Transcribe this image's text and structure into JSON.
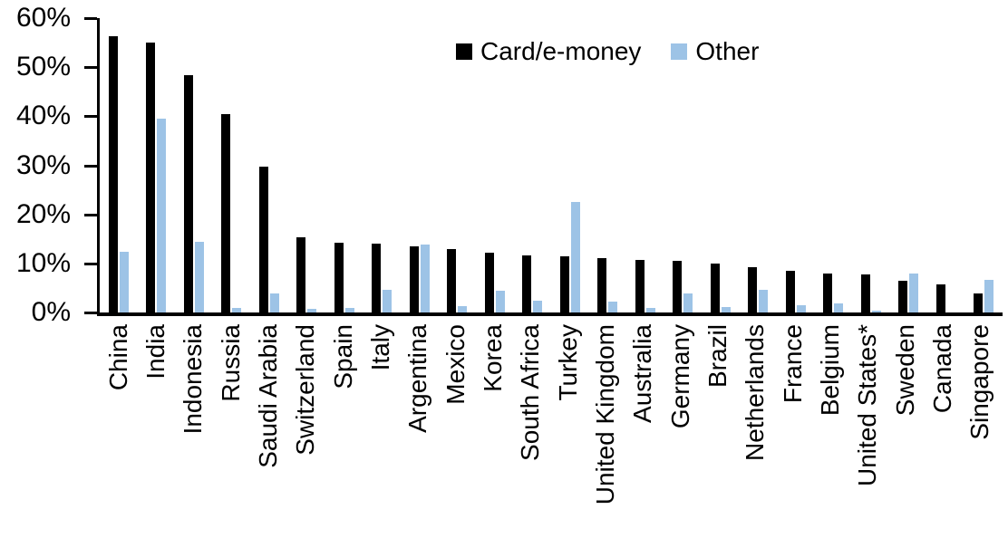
{
  "chart_data": {
    "type": "bar",
    "title": "",
    "xlabel": "",
    "ylabel": "",
    "ylim": [
      0,
      60
    ],
    "y_tick_labels": [
      "0%",
      "10%",
      "20%",
      "30%",
      "40%",
      "50%",
      "60%"
    ],
    "grid": false,
    "legend_position": "top-center",
    "bar_colors_note": "series colors below are the rendered fill colors",
    "categories": [
      "China",
      "India",
      "Indonesia",
      "Russia",
      "Saudi Arabia",
      "Switzerland",
      "Spain",
      "Italy",
      "Argentina",
      "Mexico",
      "Korea",
      "South Africa",
      "Turkey",
      "United Kingdom",
      "Australia",
      "Germany",
      "Brazil",
      "Netherlands",
      "France",
      "Belgium",
      "United States*",
      "Sweden",
      "Canada",
      "Singapore"
    ],
    "series": [
      {
        "name": "Card/e-money",
        "color": "#000000",
        "values": [
          56.3,
          55.1,
          48.3,
          40.5,
          29.8,
          15.4,
          14.2,
          14.1,
          13.4,
          12.9,
          12.1,
          11.7,
          11.5,
          11.0,
          10.8,
          10.5,
          9.9,
          9.2,
          8.5,
          8.0,
          7.8,
          6.4,
          5.8,
          3.8
        ]
      },
      {
        "name": "Other",
        "color": "#9DC3E6",
        "values": [
          12.4,
          39.6,
          14.4,
          1.0,
          3.9,
          0.8,
          1.0,
          4.7,
          13.8,
          1.3,
          4.5,
          2.4,
          22.5,
          2.3,
          0.9,
          3.8,
          1.1,
          4.7,
          1.4,
          1.9,
          0.3,
          7.9,
          0,
          6.6
        ]
      }
    ]
  }
}
